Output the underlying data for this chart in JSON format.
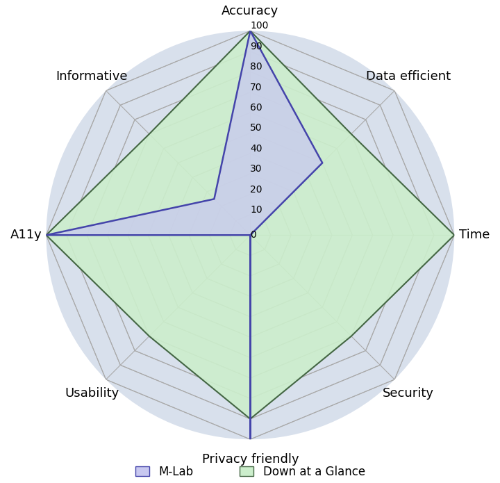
{
  "categories": [
    "Accuracy",
    "Data efficient",
    "Time",
    "Security",
    "Privacy friendly",
    "Usability",
    "A11y",
    "Informative"
  ],
  "mlab_values": [
    100,
    50,
    0,
    0,
    100,
    0,
    100,
    25
  ],
  "daag_values": [
    100,
    70,
    100,
    70,
    90,
    70,
    100,
    70
  ],
  "mlab_fill": "#c8c8f0",
  "mlab_edge": "#4444aa",
  "daag_fill": "#cceecc",
  "daag_edge": "#446644",
  "grid_color": "#aaaaaa",
  "grid_bg_color": "#d8e0ec",
  "background_color": "#ffffff",
  "radial_ticks": [
    0,
    10,
    20,
    30,
    40,
    50,
    60,
    70,
    80,
    90,
    100
  ],
  "max_val": 100,
  "legend_mlab": "M-Lab",
  "legend_daag": "Down at a Glance",
  "label_fontsize": 13,
  "tick_fontsize": 10
}
